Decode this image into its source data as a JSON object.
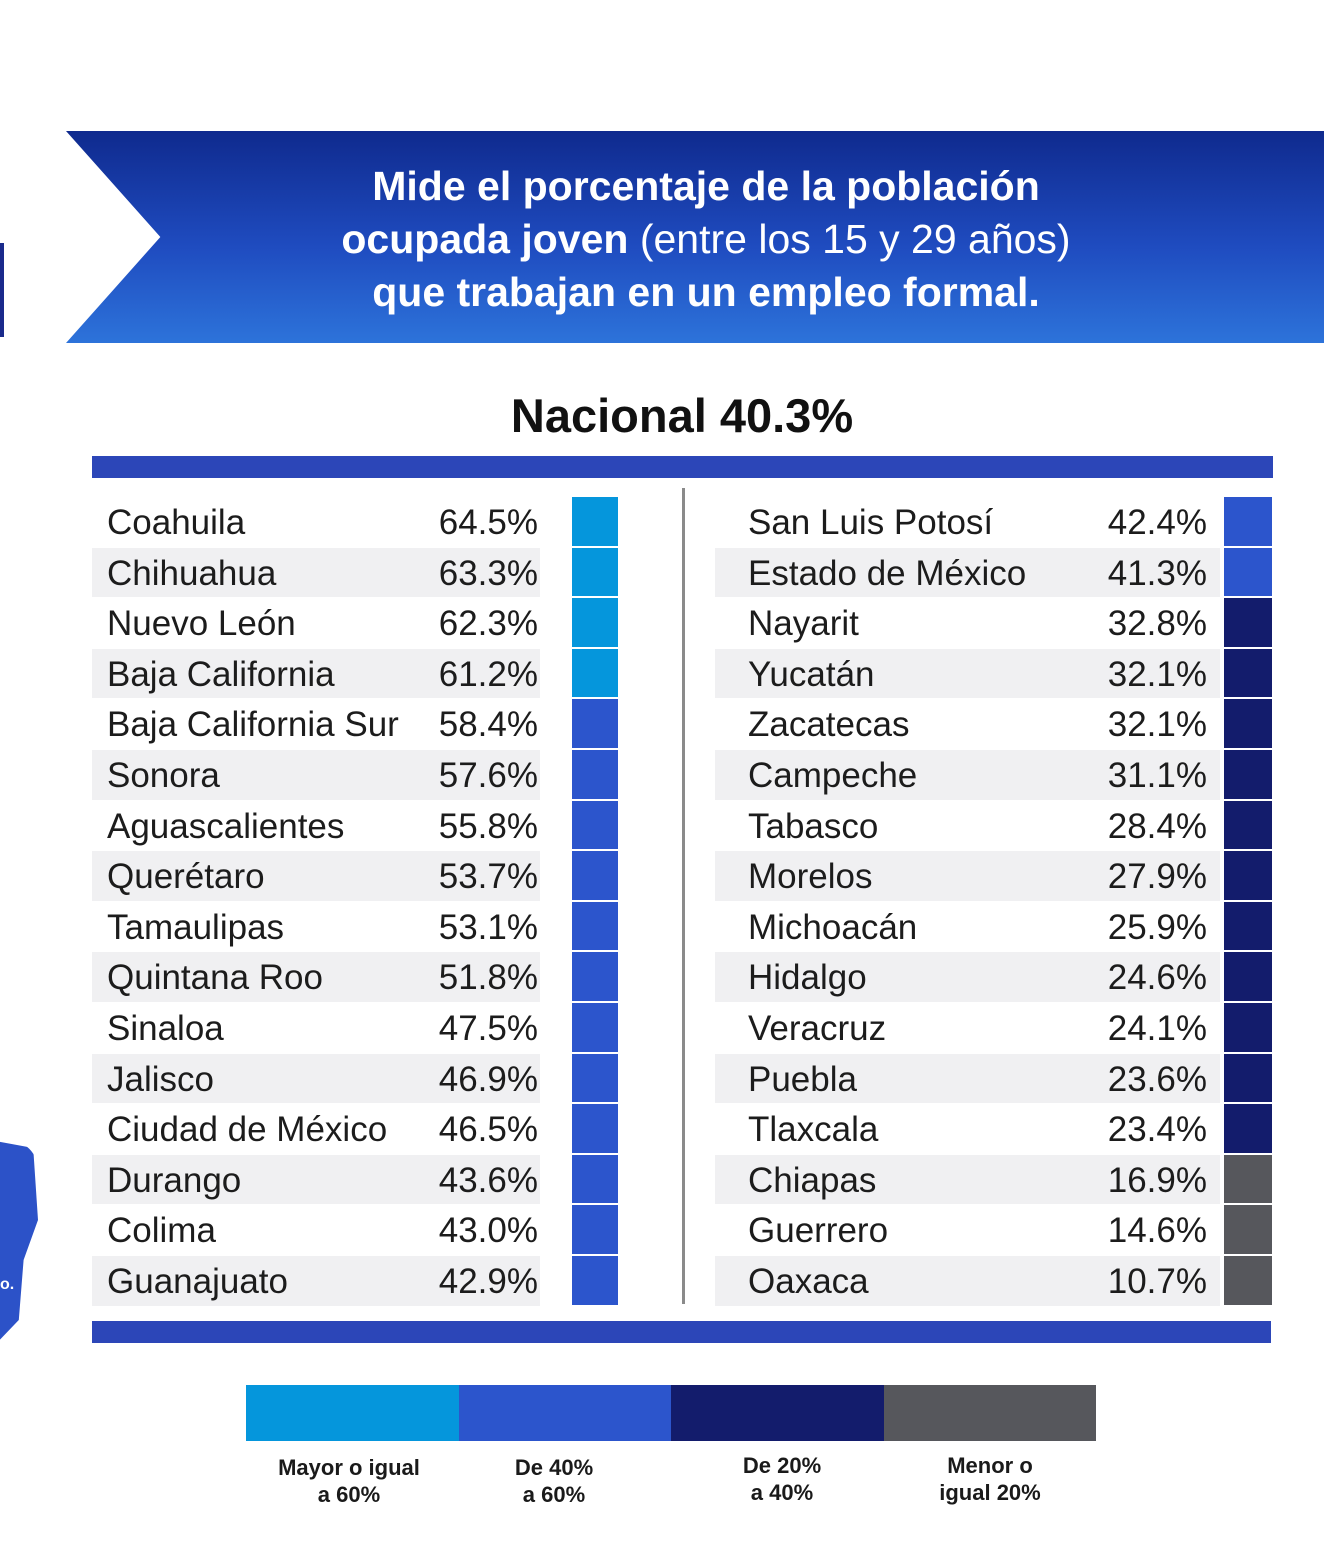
{
  "header": {
    "line1": "Mide el porcentaje de la población",
    "line2_bold": "ocupada joven",
    "line2_normal": " (entre los 15 y 29 años)",
    "line3": "que trabajan en un empleo formal."
  },
  "nacional": "Nacional 40.3%",
  "colors": {
    "gte60": "#0596dc",
    "from40to60": "#2c55cc",
    "from20to40": "#131c6c",
    "lte20": "#56575c"
  },
  "left_rows": [
    {
      "state": "Coahuila",
      "value": "64.5%",
      "band": "gte60"
    },
    {
      "state": "Chihuahua",
      "value": "63.3%",
      "band": "gte60"
    },
    {
      "state": "Nuevo León",
      "value": "62.3%",
      "band": "gte60"
    },
    {
      "state": "Baja California",
      "value": "61.2%",
      "band": "gte60"
    },
    {
      "state": "Baja California Sur",
      "value": "58.4%",
      "band": "from40to60"
    },
    {
      "state": "Sonora",
      "value": "57.6%",
      "band": "from40to60"
    },
    {
      "state": "Aguascalientes",
      "value": "55.8%",
      "band": "from40to60"
    },
    {
      "state": "Querétaro",
      "value": "53.7%",
      "band": "from40to60"
    },
    {
      "state": "Tamaulipas",
      "value": "53.1%",
      "band": "from40to60"
    },
    {
      "state": "Quintana Roo",
      "value": "51.8%",
      "band": "from40to60"
    },
    {
      "state": "Sinaloa",
      "value": "47.5%",
      "band": "from40to60"
    },
    {
      "state": "Jalisco",
      "value": "46.9%",
      "band": "from40to60"
    },
    {
      "state": "Ciudad de México",
      "value": "46.5%",
      "band": "from40to60"
    },
    {
      "state": "Durango",
      "value": "43.6%",
      "band": "from40to60"
    },
    {
      "state": "Colima",
      "value": "43.0%",
      "band": "from40to60"
    },
    {
      "state": "Guanajuato",
      "value": "42.9%",
      "band": "from40to60"
    }
  ],
  "right_rows": [
    {
      "state": "San Luis Potosí",
      "value": "42.4%",
      "band": "from40to60"
    },
    {
      "state": "Estado de México",
      "value": "41.3%",
      "band": "from40to60"
    },
    {
      "state": "Nayarit",
      "value": "32.8%",
      "band": "from20to40"
    },
    {
      "state": "Yucatán",
      "value": "32.1%",
      "band": "from20to40"
    },
    {
      "state": "Zacatecas",
      "value": "32.1%",
      "band": "from20to40"
    },
    {
      "state": "Campeche",
      "value": "31.1%",
      "band": "from20to40"
    },
    {
      "state": "Tabasco",
      "value": "28.4%",
      "band": "from20to40"
    },
    {
      "state": "Morelos",
      "value": "27.9%",
      "band": "from20to40"
    },
    {
      "state": "Michoacán",
      "value": "25.9%",
      "band": "from20to40"
    },
    {
      "state": "Hidalgo",
      "value": "24.6%",
      "band": "from20to40"
    },
    {
      "state": "Veracruz",
      "value": "24.1%",
      "band": "from20to40"
    },
    {
      "state": "Puebla",
      "value": "23.6%",
      "band": "from20to40"
    },
    {
      "state": "Tlaxcala",
      "value": "23.4%",
      "band": "from20to40"
    },
    {
      "state": "Chiapas",
      "value": "16.9%",
      "band": "lte20"
    },
    {
      "state": "Guerrero",
      "value": "14.6%",
      "band": "lte20"
    },
    {
      "state": "Oaxaca",
      "value": "10.7%",
      "band": "lte20"
    }
  ],
  "legend": [
    {
      "line1": "Mayor o igual",
      "line2": "a 60%",
      "band": "gte60"
    },
    {
      "line1": "De 40%",
      "line2": "a 60%",
      "band": "from40to60"
    },
    {
      "line1": "De 20%",
      "line2": "a 40%",
      "band": "from20to40"
    },
    {
      "line1": "Menor o",
      "line2": "igual 20%",
      "band": "lte20"
    }
  ],
  "map_fragment_text": "o."
}
